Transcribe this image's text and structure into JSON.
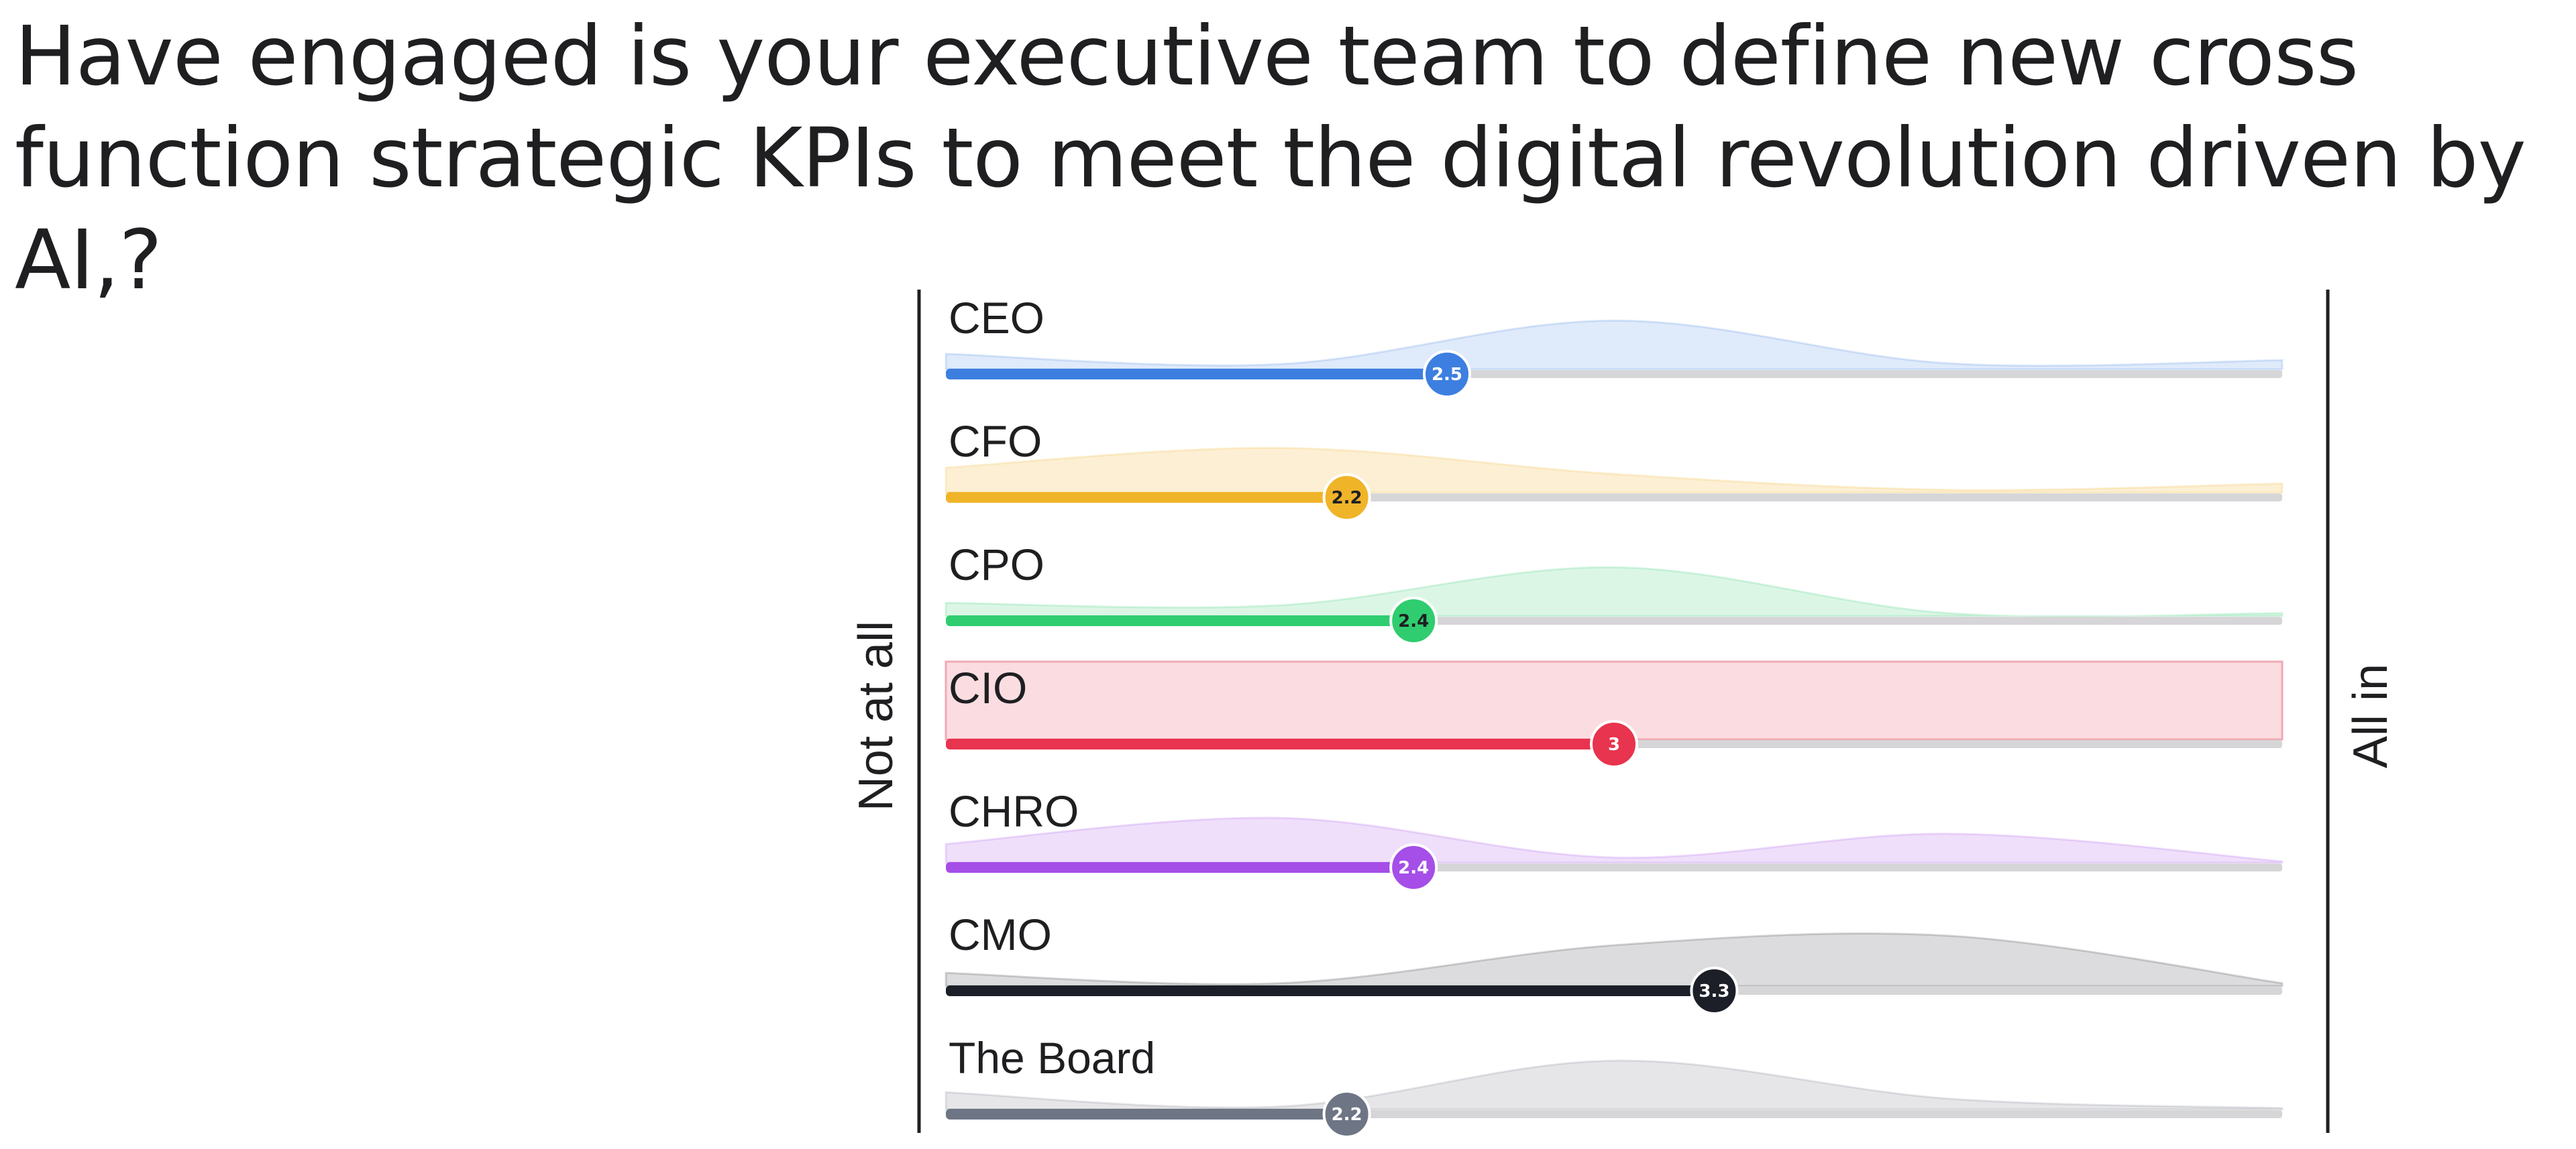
{
  "slide": {
    "title": "Have engaged is your executive team to define new cross function strategic KPIs to meet the digital revolution driven by AI,?"
  },
  "chart_data": {
    "type": "scale-distribution",
    "left_label": "Not at all",
    "right_label": "All in",
    "scale_range": [
      1,
      5
    ],
    "rows": [
      {
        "label": "CEO",
        "mean": 2.5,
        "mean_label": "2.5",
        "color": "#3d7fe0",
        "fill": "#dfeafb",
        "marker_text_color": "#ffffff",
        "highlight": false,
        "distribution": [
          0.18,
          0.05,
          0.6,
          0.06,
          0.1
        ]
      },
      {
        "label": "CFO",
        "mean": 2.2,
        "mean_label": "2.2",
        "color": "#f0b429",
        "fill": "#fcefd4",
        "marker_text_color": "#1f1f22",
        "highlight": false,
        "distribution": [
          0.3,
          0.55,
          0.22,
          0.02,
          0.1
        ]
      },
      {
        "label": "CPO",
        "mean": 2.4,
        "mean_label": "2.4",
        "color": "#2fcd6f",
        "fill": "#dcf6e6",
        "marker_text_color": "#1f1f22",
        "highlight": false,
        "distribution": [
          0.15,
          0.12,
          0.6,
          0.02,
          0.02
        ]
      },
      {
        "label": "CIO",
        "mean": 3.0,
        "mean_label": "3",
        "color": "#e8344e",
        "fill": "#fbdde1",
        "marker_text_color": "#ffffff",
        "highlight": true,
        "distribution": [
          1,
          1,
          1,
          1,
          1
        ]
      },
      {
        "label": "CHRO",
        "mean": 2.4,
        "mean_label": "2.4",
        "color": "#a64ee8",
        "fill": "#efdffb",
        "marker_text_color": "#ffffff",
        "highlight": false,
        "distribution": [
          0.22,
          0.55,
          0.05,
          0.35,
          0.0
        ]
      },
      {
        "label": "CMO",
        "mean": 3.3,
        "mean_label": "3.3",
        "color": "#1c1f28",
        "fill": "#dcdcde",
        "marker_text_color": "#ffffff",
        "highlight": false,
        "distribution": [
          0.15,
          0.02,
          0.5,
          0.62,
          0.02
        ]
      },
      {
        "label": "The Board",
        "mean": 2.2,
        "mean_label": "2.2",
        "color": "#6e7585",
        "fill": "#e6e6e8",
        "marker_text_color": "#ffffff",
        "highlight": false,
        "distribution": [
          0.2,
          0.02,
          0.6,
          0.12,
          0.0
        ]
      }
    ]
  }
}
